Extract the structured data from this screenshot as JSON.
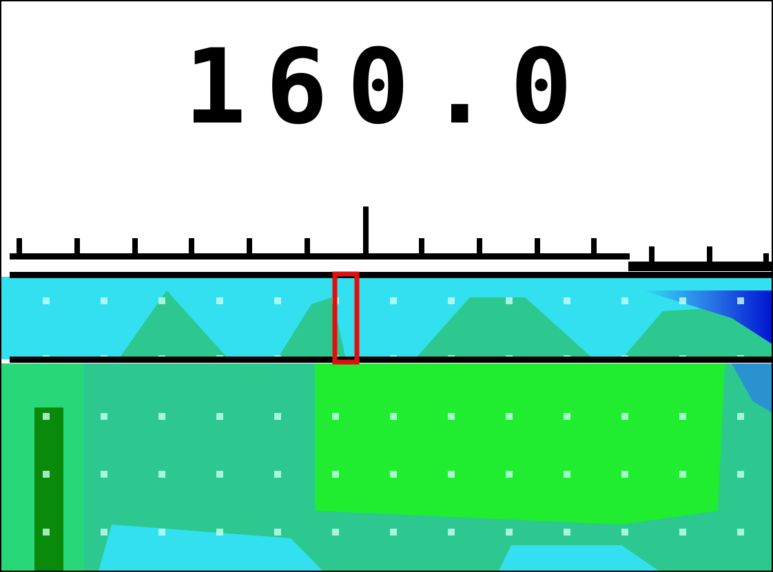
{
  "readout": "160.0"
}
